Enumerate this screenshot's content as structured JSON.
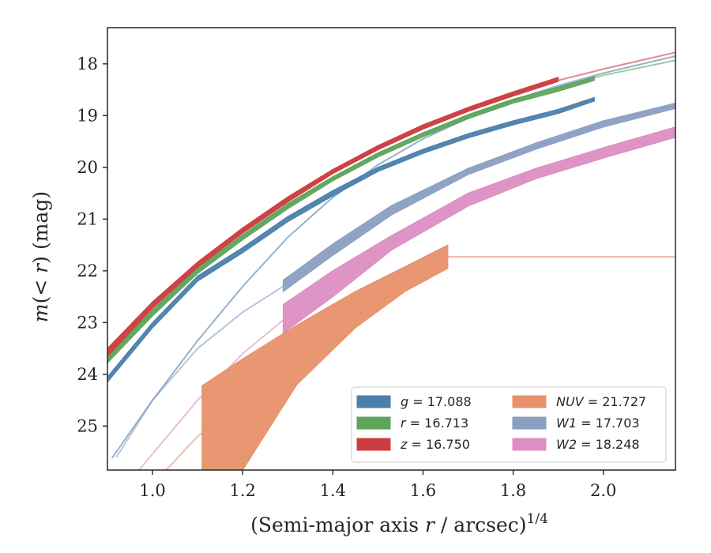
{
  "chart_data": {
    "type": "line",
    "xlabel": "(Semi-major axis r / arcsec)",
    "xlabel_sup": "1/4",
    "ylabel": "m(< r) (mag)",
    "xlim": [
      0.9,
      2.16
    ],
    "ylim": [
      25.85,
      17.3
    ],
    "y_inverted": true,
    "grid": false,
    "legend_position": "lower-right",
    "x_ticks": [
      {
        "value": 1.0,
        "label": "1.0"
      },
      {
        "value": 1.2,
        "label": "1.2"
      },
      {
        "value": 1.4,
        "label": "1.4"
      },
      {
        "value": 1.6,
        "label": "1.6"
      },
      {
        "value": 1.8,
        "label": "1.8"
      },
      {
        "value": 2.0,
        "label": "2.0"
      }
    ],
    "y_ticks": [
      {
        "value": 18,
        "label": "18"
      },
      {
        "value": 19,
        "label": "19"
      },
      {
        "value": 20,
        "label": "20"
      },
      {
        "value": 21,
        "label": "21"
      },
      {
        "value": 22,
        "label": "22"
      },
      {
        "value": 23,
        "label": "23"
      },
      {
        "value": 24,
        "label": "24"
      },
      {
        "value": 25,
        "label": "25"
      }
    ],
    "series": [
      {
        "name": "g = 17.088",
        "color": "#4c7fac",
        "model": [
          [
            0.91,
            25.62
          ],
          [
            1.0,
            24.5
          ],
          [
            1.1,
            23.35
          ],
          [
            1.2,
            22.3
          ],
          [
            1.3,
            21.35
          ],
          [
            1.4,
            20.58
          ],
          [
            1.5,
            19.95
          ],
          [
            1.6,
            19.45
          ],
          [
            1.7,
            19.05
          ],
          [
            1.8,
            18.7
          ],
          [
            1.9,
            18.42
          ],
          [
            2.0,
            18.18
          ],
          [
            2.16,
            17.85
          ]
        ],
        "data_x": [
          0.9,
          1.98
        ],
        "band": [
          [
            0.9,
            24.05,
            24.15
          ],
          [
            1.0,
            23.0,
            23.1
          ],
          [
            1.1,
            22.1,
            22.2
          ],
          [
            1.2,
            21.55,
            21.65
          ],
          [
            1.3,
            20.95,
            21.05
          ],
          [
            1.4,
            20.45,
            20.55
          ],
          [
            1.5,
            20.0,
            20.08
          ],
          [
            1.6,
            19.65,
            19.73
          ],
          [
            1.7,
            19.35,
            19.43
          ],
          [
            1.8,
            19.1,
            19.18
          ],
          [
            1.9,
            18.88,
            18.96
          ],
          [
            1.98,
            18.65,
            18.72
          ]
        ]
      },
      {
        "name": "r = 16.713",
        "color": "#5ea55b",
        "model": [
          [
            0.9,
            23.72
          ],
          [
            1.0,
            22.8
          ],
          [
            1.1,
            22.0
          ],
          [
            1.2,
            21.35
          ],
          [
            1.3,
            20.75
          ],
          [
            1.4,
            20.22
          ],
          [
            1.5,
            19.75
          ],
          [
            1.6,
            19.35
          ],
          [
            1.7,
            19.0
          ],
          [
            1.8,
            18.7
          ],
          [
            1.9,
            18.45
          ],
          [
            2.0,
            18.22
          ],
          [
            2.16,
            17.93
          ]
        ],
        "data_x": [
          0.9,
          1.98
        ],
        "band": [
          [
            0.9,
            23.65,
            23.78
          ],
          [
            1.0,
            22.75,
            22.87
          ],
          [
            1.1,
            21.95,
            22.05
          ],
          [
            1.2,
            21.3,
            21.4
          ],
          [
            1.3,
            20.7,
            20.8
          ],
          [
            1.4,
            20.18,
            20.26
          ],
          [
            1.5,
            19.72,
            19.8
          ],
          [
            1.6,
            19.33,
            19.41
          ],
          [
            1.7,
            18.98,
            19.06
          ],
          [
            1.8,
            18.68,
            18.76
          ],
          [
            1.9,
            18.45,
            18.53
          ],
          [
            1.98,
            18.25,
            18.32
          ]
        ]
      },
      {
        "name": "z = 16.750",
        "color": "#cc3d3f",
        "model": [
          [
            0.9,
            23.57
          ],
          [
            1.0,
            22.65
          ],
          [
            1.1,
            21.88
          ],
          [
            1.2,
            21.22
          ],
          [
            1.3,
            20.62
          ],
          [
            1.4,
            20.08
          ],
          [
            1.5,
            19.62
          ],
          [
            1.6,
            19.22
          ],
          [
            1.7,
            18.88
          ],
          [
            1.8,
            18.58
          ],
          [
            1.9,
            18.32
          ],
          [
            2.0,
            18.1
          ],
          [
            2.16,
            17.78
          ]
        ],
        "data_x": [
          0.9,
          1.9
        ],
        "band": [
          [
            0.9,
            23.5,
            23.65
          ],
          [
            1.0,
            22.6,
            22.72
          ],
          [
            1.1,
            21.83,
            21.93
          ],
          [
            1.2,
            21.17,
            21.27
          ],
          [
            1.3,
            20.57,
            20.67
          ],
          [
            1.4,
            20.04,
            20.12
          ],
          [
            1.5,
            19.58,
            19.66
          ],
          [
            1.6,
            19.18,
            19.26
          ],
          [
            1.7,
            18.84,
            18.92
          ],
          [
            1.8,
            18.54,
            18.62
          ],
          [
            1.9,
            18.26,
            18.34
          ]
        ]
      },
      {
        "name": "NUV = 21.727",
        "color": "#e8916a",
        "model": [
          [
            1.03,
            25.85
          ],
          [
            1.1,
            25.2
          ],
          [
            1.2,
            24.5
          ],
          [
            1.28,
            23.95
          ],
          [
            1.4,
            23.2
          ],
          [
            1.5,
            22.6
          ],
          [
            1.6,
            22.15
          ],
          [
            1.655,
            21.727
          ],
          [
            2.16,
            21.727
          ]
        ],
        "data_x": [
          1.11,
          1.655
        ],
        "band": [
          [
            1.11,
            24.22,
            25.85
          ],
          [
            1.2,
            23.7,
            25.85
          ],
          [
            1.32,
            23.05,
            24.2
          ],
          [
            1.45,
            22.4,
            23.1
          ],
          [
            1.56,
            21.92,
            22.4
          ],
          [
            1.655,
            21.5,
            21.95
          ]
        ]
      },
      {
        "name": "W1 = 17.703",
        "color": "#8b9fc2",
        "model": [
          [
            0.92,
            25.6
          ],
          [
            1.0,
            24.5
          ],
          [
            1.1,
            23.5
          ],
          [
            1.2,
            22.8
          ],
          [
            1.29,
            22.3
          ],
          [
            1.4,
            21.6
          ],
          [
            1.53,
            20.82
          ],
          [
            1.7,
            20.05
          ],
          [
            1.85,
            19.6
          ],
          [
            2.0,
            19.15
          ],
          [
            2.16,
            18.8
          ]
        ],
        "data_x": [
          1.29,
          2.16
        ],
        "band": [
          [
            1.29,
            22.18,
            22.4
          ],
          [
            1.4,
            21.48,
            21.7
          ],
          [
            1.53,
            20.74,
            20.92
          ],
          [
            1.7,
            20.02,
            20.14
          ],
          [
            1.85,
            19.53,
            19.65
          ],
          [
            2.0,
            19.1,
            19.22
          ],
          [
            2.16,
            18.76,
            18.86
          ]
        ]
      },
      {
        "name": "W2 = 18.248",
        "color": "#dd8ec3",
        "model": [
          [
            0.97,
            25.85
          ],
          [
            1.1,
            24.5
          ],
          [
            1.2,
            23.6
          ],
          [
            1.29,
            22.95
          ],
          [
            1.4,
            22.1
          ],
          [
            1.53,
            21.45
          ],
          [
            1.7,
            20.6
          ],
          [
            1.85,
            20.1
          ],
          [
            2.0,
            19.7
          ],
          [
            2.16,
            19.35
          ]
        ],
        "data_x": [
          1.29,
          2.16
        ],
        "band": [
          [
            1.29,
            22.65,
            23.2
          ],
          [
            1.4,
            22.0,
            22.5
          ],
          [
            1.53,
            21.32,
            21.6
          ],
          [
            1.7,
            20.5,
            20.75
          ],
          [
            1.85,
            20.02,
            20.22
          ],
          [
            2.0,
            19.62,
            19.82
          ],
          [
            2.16,
            19.22,
            19.42
          ]
        ]
      }
    ],
    "legend": [
      {
        "var": "g",
        "value": " = 17.088"
      },
      {
        "var": "r",
        "value": " = 16.713"
      },
      {
        "var": "z",
        "value": " = 16.750"
      },
      {
        "var": "NUV",
        "value": " = 21.727"
      },
      {
        "var": "W1",
        "value": " = 17.703"
      },
      {
        "var": "W2",
        "value": " = 18.248"
      }
    ]
  }
}
